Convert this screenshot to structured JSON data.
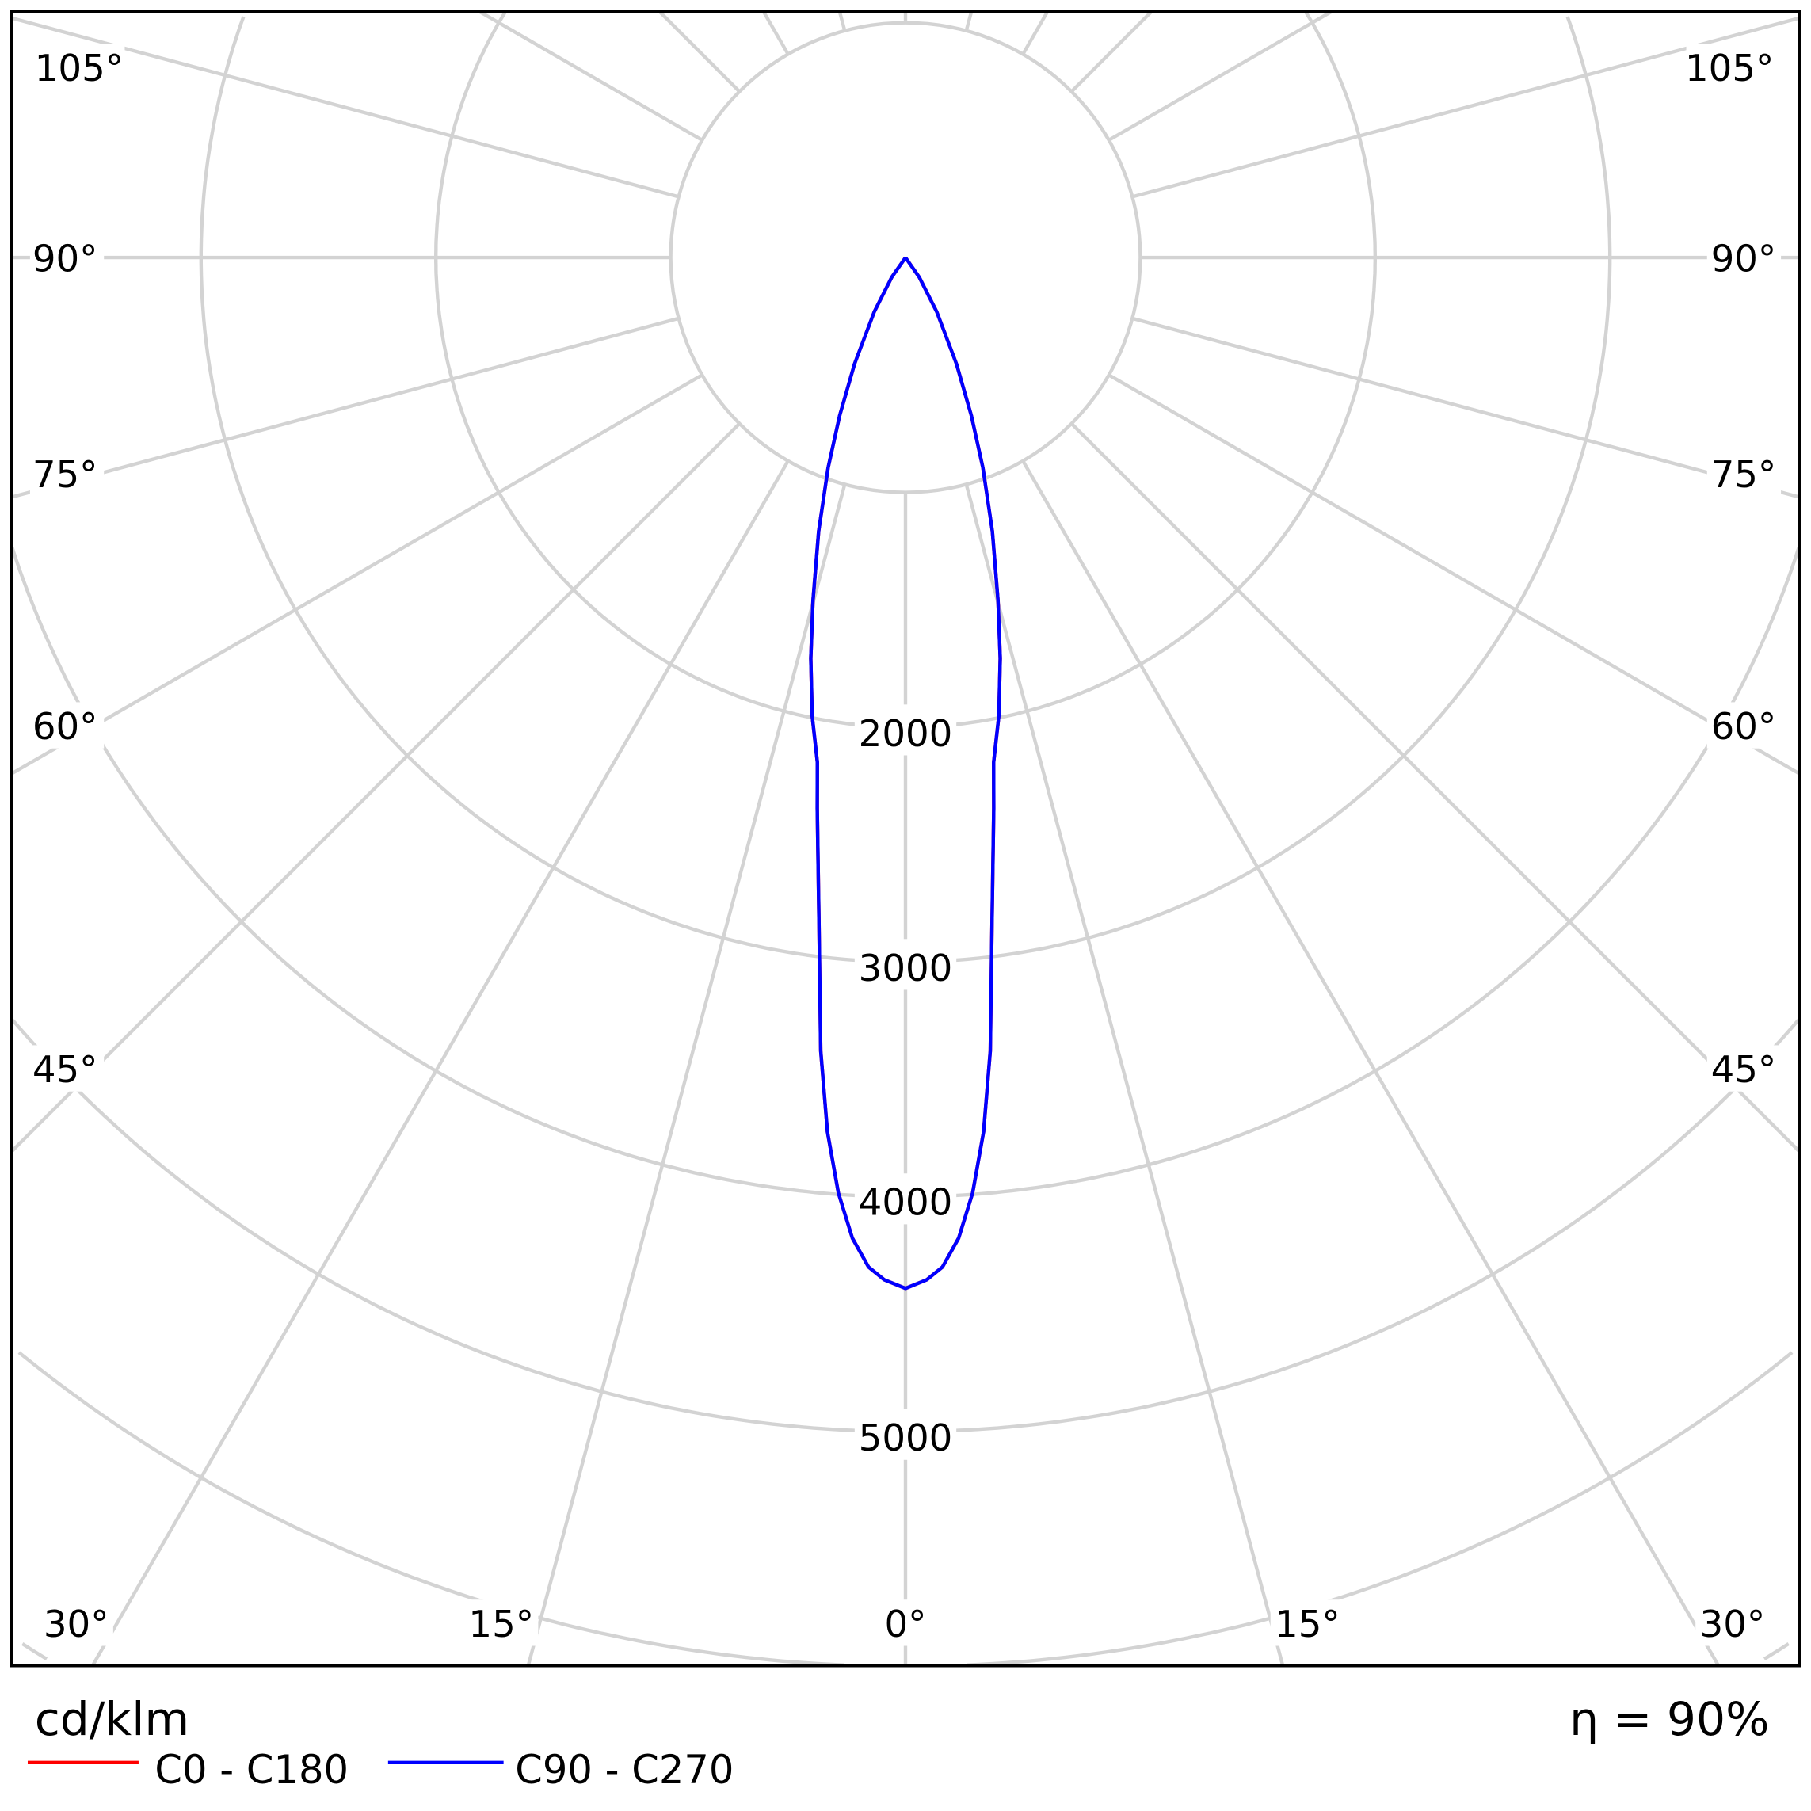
{
  "chart_data": {
    "type": "polar-line",
    "unit_label": "cd/klm",
    "efficiency_label": "η = 90%",
    "radial_ticks": [
      1000,
      2000,
      3000,
      4000,
      5000,
      6000,
      7000
    ],
    "radial_tick_labels": [
      "2000",
      "3000",
      "4000",
      "5000"
    ],
    "angle_tick_labels": {
      "left": [
        "105°",
        "90°",
        "75°",
        "60°",
        "45°"
      ],
      "bottom": [
        "30°",
        "15°",
        "0°",
        "15°",
        "30°"
      ],
      "right": [
        "105°",
        "90°",
        "75°",
        "60°",
        "45°"
      ]
    },
    "grid": true,
    "legend_position": "bottom-left",
    "colors": {
      "C0-C180": "#ff0000",
      "C90-C270": "#0000ff",
      "grid": "#d3d3d3"
    },
    "angles_deg": [
      0,
      1.2,
      2.1,
      3.1,
      4.1,
      5.1,
      6.1,
      7.4,
      9.1,
      9.9,
      11.5,
      13.3,
      15.1,
      17.6,
      20.2,
      22.6,
      25.6,
      29.9,
      35,
      90
    ],
    "series": [
      {
        "name": "C0 - C180",
        "values": [
          4390,
          4354,
          4302,
          4182,
          3994,
          3738,
          3398,
          2862,
          2376,
          2182,
          1993,
          1754,
          1513,
          1223,
          954,
          729,
          502,
          267,
          102,
          0
        ]
      },
      {
        "name": "C90 - C270",
        "values": [
          4390,
          4354,
          4302,
          4182,
          3994,
          3738,
          3398,
          2862,
          2376,
          2182,
          1993,
          1754,
          1513,
          1223,
          954,
          729,
          502,
          267,
          102,
          0
        ]
      }
    ]
  }
}
